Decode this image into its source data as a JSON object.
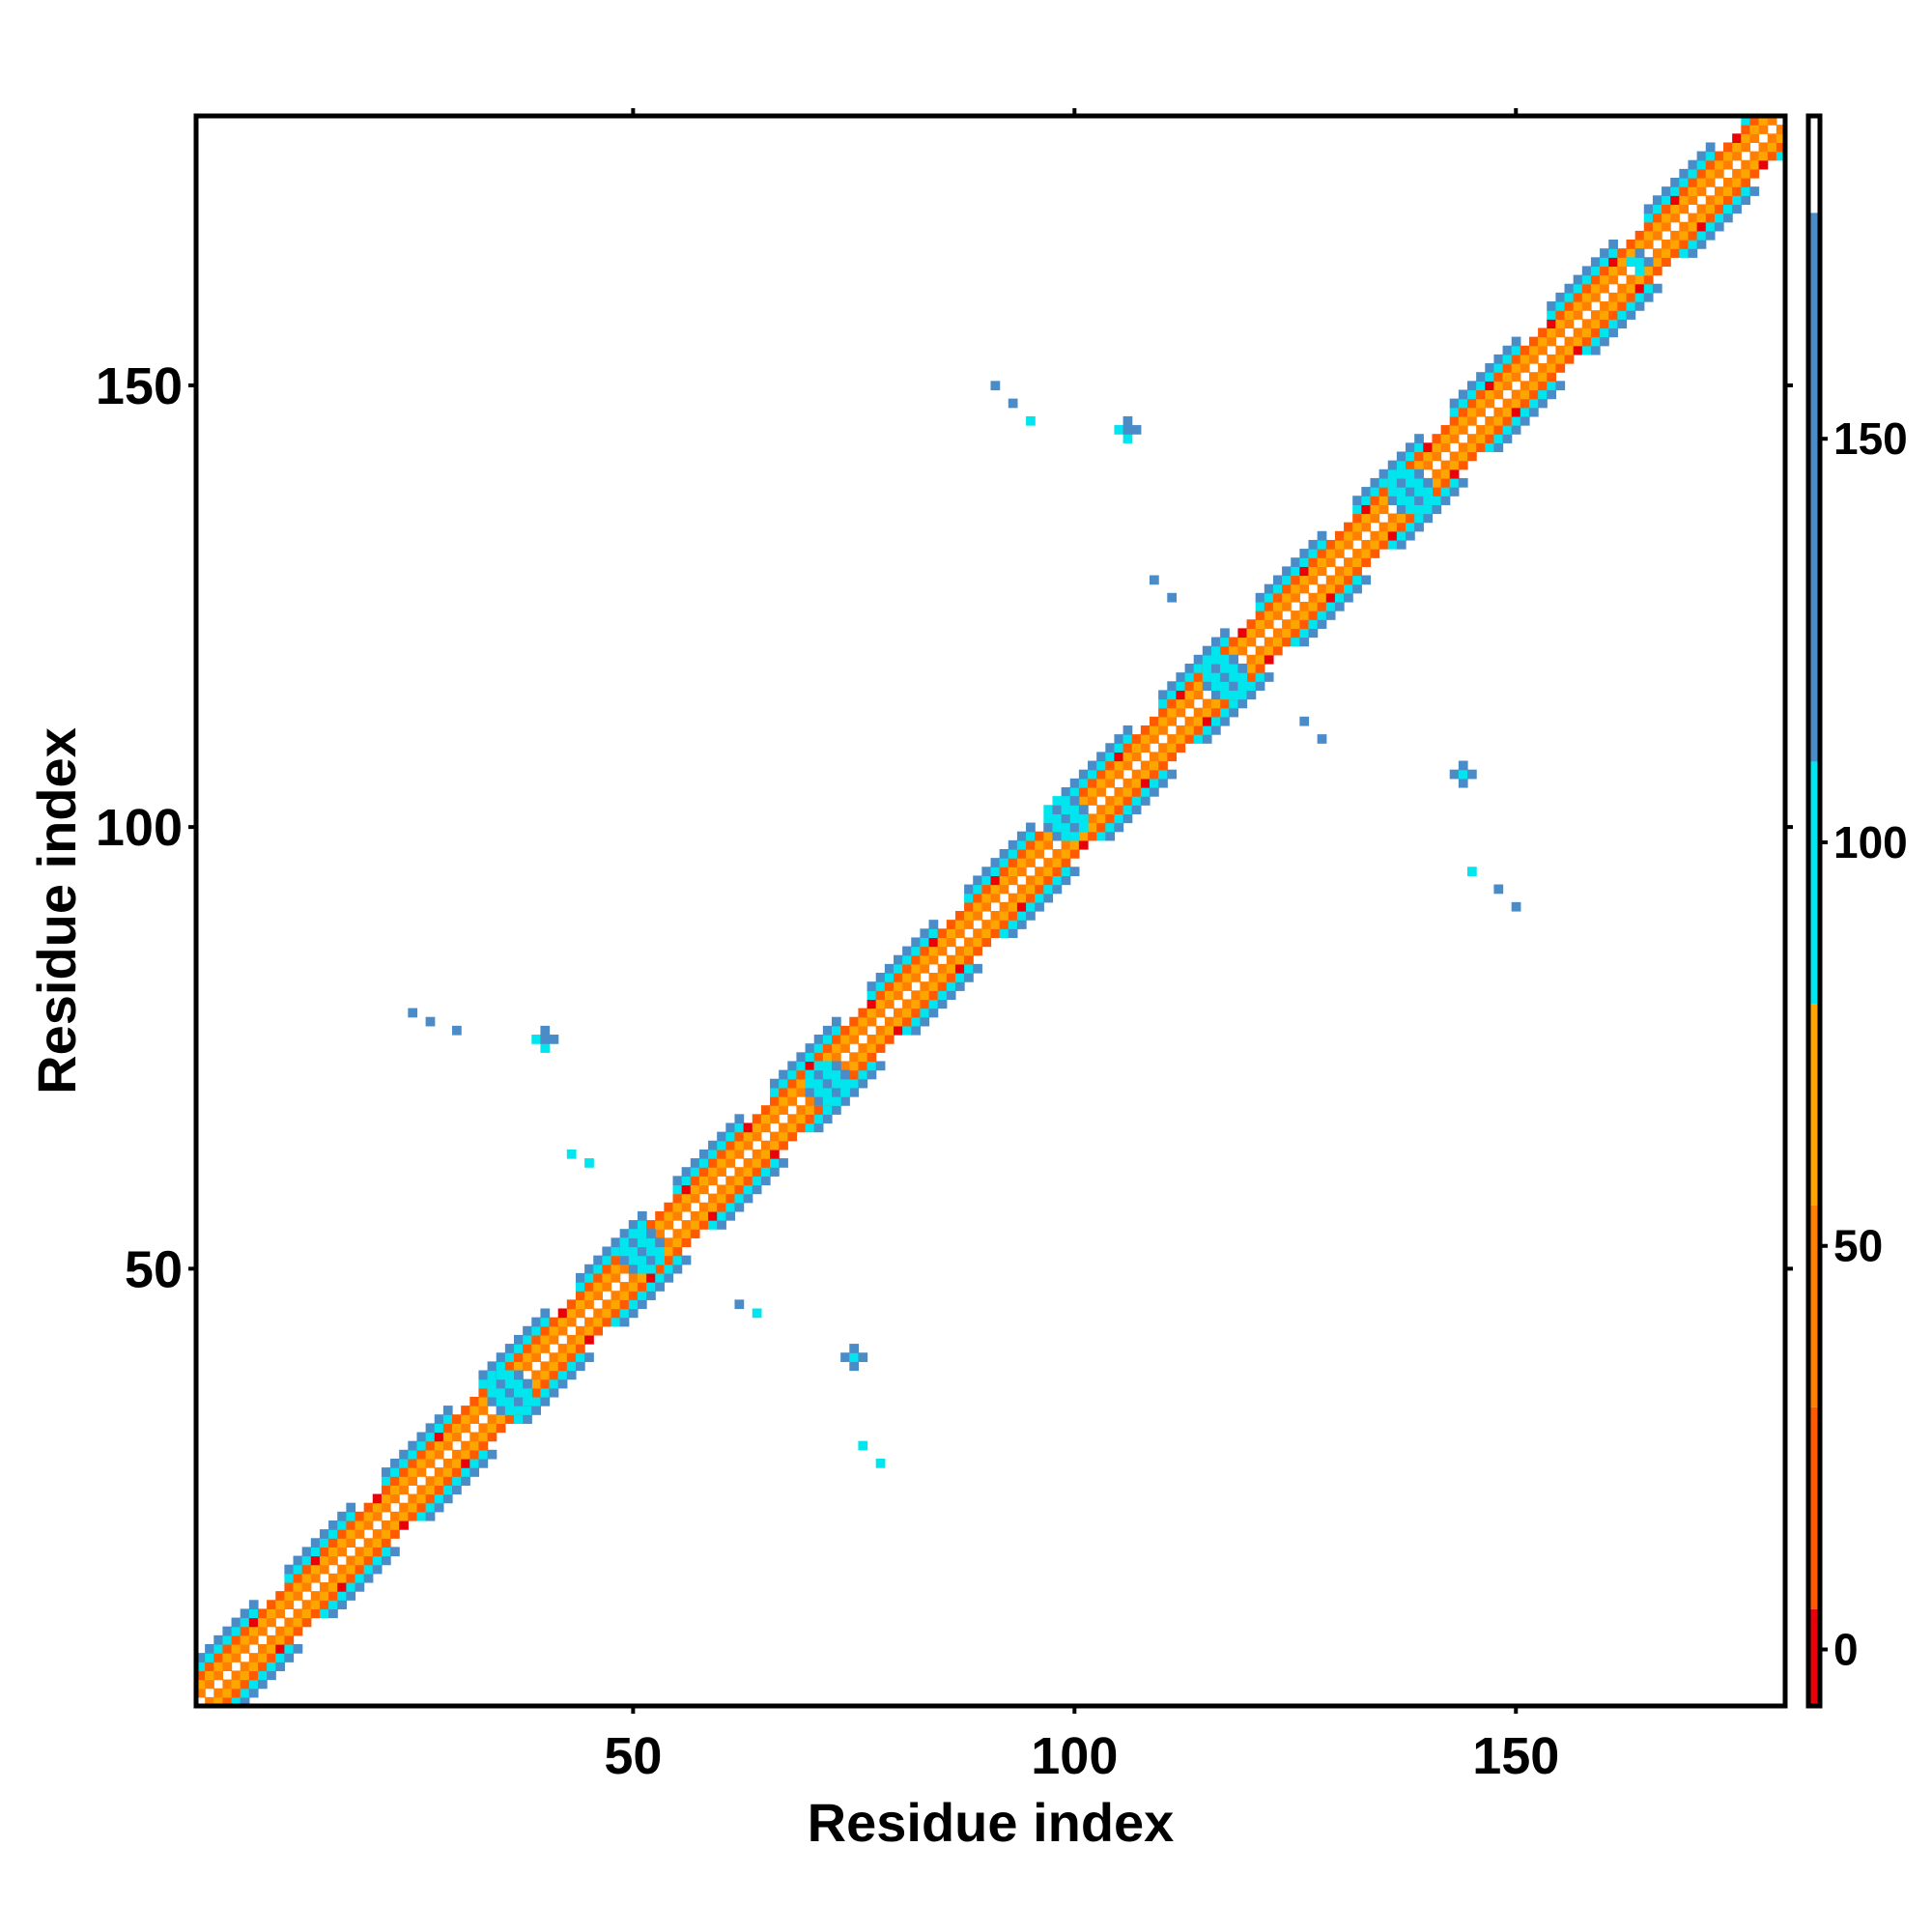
{
  "chart_data": {
    "type": "heatmap",
    "xlabel": "Residue index",
    "ylabel": "Residue index",
    "xlim": [
      1,
      180
    ],
    "ylim": [
      1,
      180
    ],
    "xticks": [
      "50",
      "100",
      "150"
    ],
    "yticks": [
      "50",
      "100",
      "150"
    ],
    "xtick_values": [
      50,
      100,
      150
    ],
    "ytick_values": [
      50,
      100,
      150
    ],
    "colorbar": {
      "ticks": [
        "0",
        "50",
        "100",
        "150"
      ],
      "tick_values": [
        0,
        50,
        100,
        150
      ],
      "range": [
        -7,
        190
      ],
      "segments": [
        {
          "from": -7,
          "to": 5,
          "color": "#e8000b"
        },
        {
          "from": 5,
          "to": 30,
          "color": "#ff5a00"
        },
        {
          "from": 30,
          "to": 55,
          "color": "#ff8000"
        },
        {
          "from": 55,
          "to": 80,
          "color": "#ffa500"
        },
        {
          "from": 80,
          "to": 110,
          "color": "#00e5ee"
        },
        {
          "from": 110,
          "to": 178,
          "color": "#4a8cc8"
        },
        {
          "from": 178,
          "to": 190,
          "color": "#ffffff"
        }
      ]
    },
    "band": {
      "description_of_values": "near-diagonal contacts: |i-j| offset mapped to colour class",
      "offsets": [
        {
          "offset": 1,
          "color": "#ff8000"
        },
        {
          "offset": 2,
          "color": "#ffa500"
        },
        {
          "offset": 3,
          "color": "#ff5a00"
        },
        {
          "offset": 4,
          "color": "#00e5ee"
        },
        {
          "offset": 5,
          "color": "#4a8cc8"
        }
      ]
    },
    "clusters": [
      {
        "i": 40,
        "j": 76,
        "color": "#4a8cc8",
        "size": 3
      },
      {
        "i": 75,
        "j": 40,
        "color": "#4a8cc8",
        "size": 3
      },
      {
        "i": 106,
        "j": 145,
        "color": "#4a8cc8",
        "size": 3
      },
      {
        "i": 144,
        "j": 106,
        "color": "#4a8cc8",
        "size": 3
      },
      {
        "i": 36,
        "j": 36,
        "color": "#00e5ee",
        "size": 5
      },
      {
        "i": 51,
        "j": 52,
        "color": "#00e5ee",
        "size": 4
      },
      {
        "i": 72,
        "j": 71,
        "color": "#00e5ee",
        "size": 4
      },
      {
        "i": 99,
        "j": 101,
        "color": "#00e5ee",
        "size": 4
      },
      {
        "i": 117,
        "j": 117,
        "color": "#00e5ee",
        "size": 4
      },
      {
        "i": 138,
        "j": 138,
        "color": "#00e5ee",
        "size": 4
      },
      {
        "i": 164,
        "j": 164,
        "color": "#00e5ee",
        "size": 3
      },
      {
        "i": 25,
        "j": 79,
        "color": "#4a8cc8",
        "size": 1
      },
      {
        "i": 27,
        "j": 78,
        "color": "#00e5ee",
        "size": 1
      },
      {
        "i": 30,
        "j": 77,
        "color": "#00e5ee",
        "size": 1
      },
      {
        "i": 43,
        "j": 63,
        "color": "#00e5ee",
        "size": 1
      },
      {
        "i": 45,
        "j": 62,
        "color": "#4a8cc8",
        "size": 1
      },
      {
        "i": 62,
        "j": 46,
        "color": "#4a8cc8",
        "size": 1
      },
      {
        "i": 64,
        "j": 45,
        "color": "#00e5ee",
        "size": 1
      },
      {
        "i": 76,
        "j": 30,
        "color": "#00e5ee",
        "size": 1
      },
      {
        "i": 78,
        "j": 28,
        "color": "#4a8cc8",
        "size": 1
      },
      {
        "i": 91,
        "j": 150,
        "color": "#4a8cc8",
        "size": 1
      },
      {
        "i": 93,
        "j": 148,
        "color": "#00e5ee",
        "size": 1
      },
      {
        "i": 95,
        "j": 146,
        "color": "#00e5ee",
        "size": 1
      },
      {
        "i": 145,
        "j": 95,
        "color": "#00e5ee",
        "size": 1
      },
      {
        "i": 148,
        "j": 93,
        "color": "#4a8cc8",
        "size": 1
      },
      {
        "i": 150,
        "j": 91,
        "color": "#00e5ee",
        "size": 1
      },
      {
        "i": 109,
        "j": 128,
        "color": "#4a8cc8",
        "size": 1
      },
      {
        "i": 111,
        "j": 126,
        "color": "#00e5ee",
        "size": 1
      },
      {
        "i": 126,
        "j": 112,
        "color": "#00e5ee",
        "size": 1
      },
      {
        "i": 128,
        "j": 110,
        "color": "#4a8cc8",
        "size": 1
      }
    ]
  }
}
